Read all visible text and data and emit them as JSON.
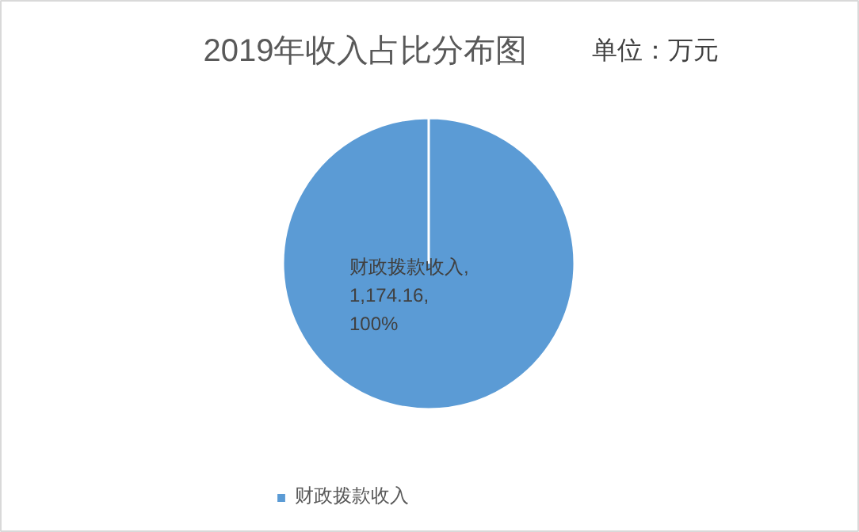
{
  "chart_data": {
    "type": "pie",
    "title": "2019年收入占比分布图",
    "subtitle": "单位：万元",
    "categories": [
      "财政拨款收入",
      null,
      null,
      null
    ],
    "values": [
      1174.16,
      0,
      0,
      0
    ],
    "colors": [
      "#5b9bd5",
      "#ed7d31",
      "#a5a5a5",
      "#ffc000"
    ],
    "value_labels": [
      "财政拨款收入,\n1,174.16,\n100%",
      null,
      null,
      null
    ],
    "legend": "bottom"
  }
}
